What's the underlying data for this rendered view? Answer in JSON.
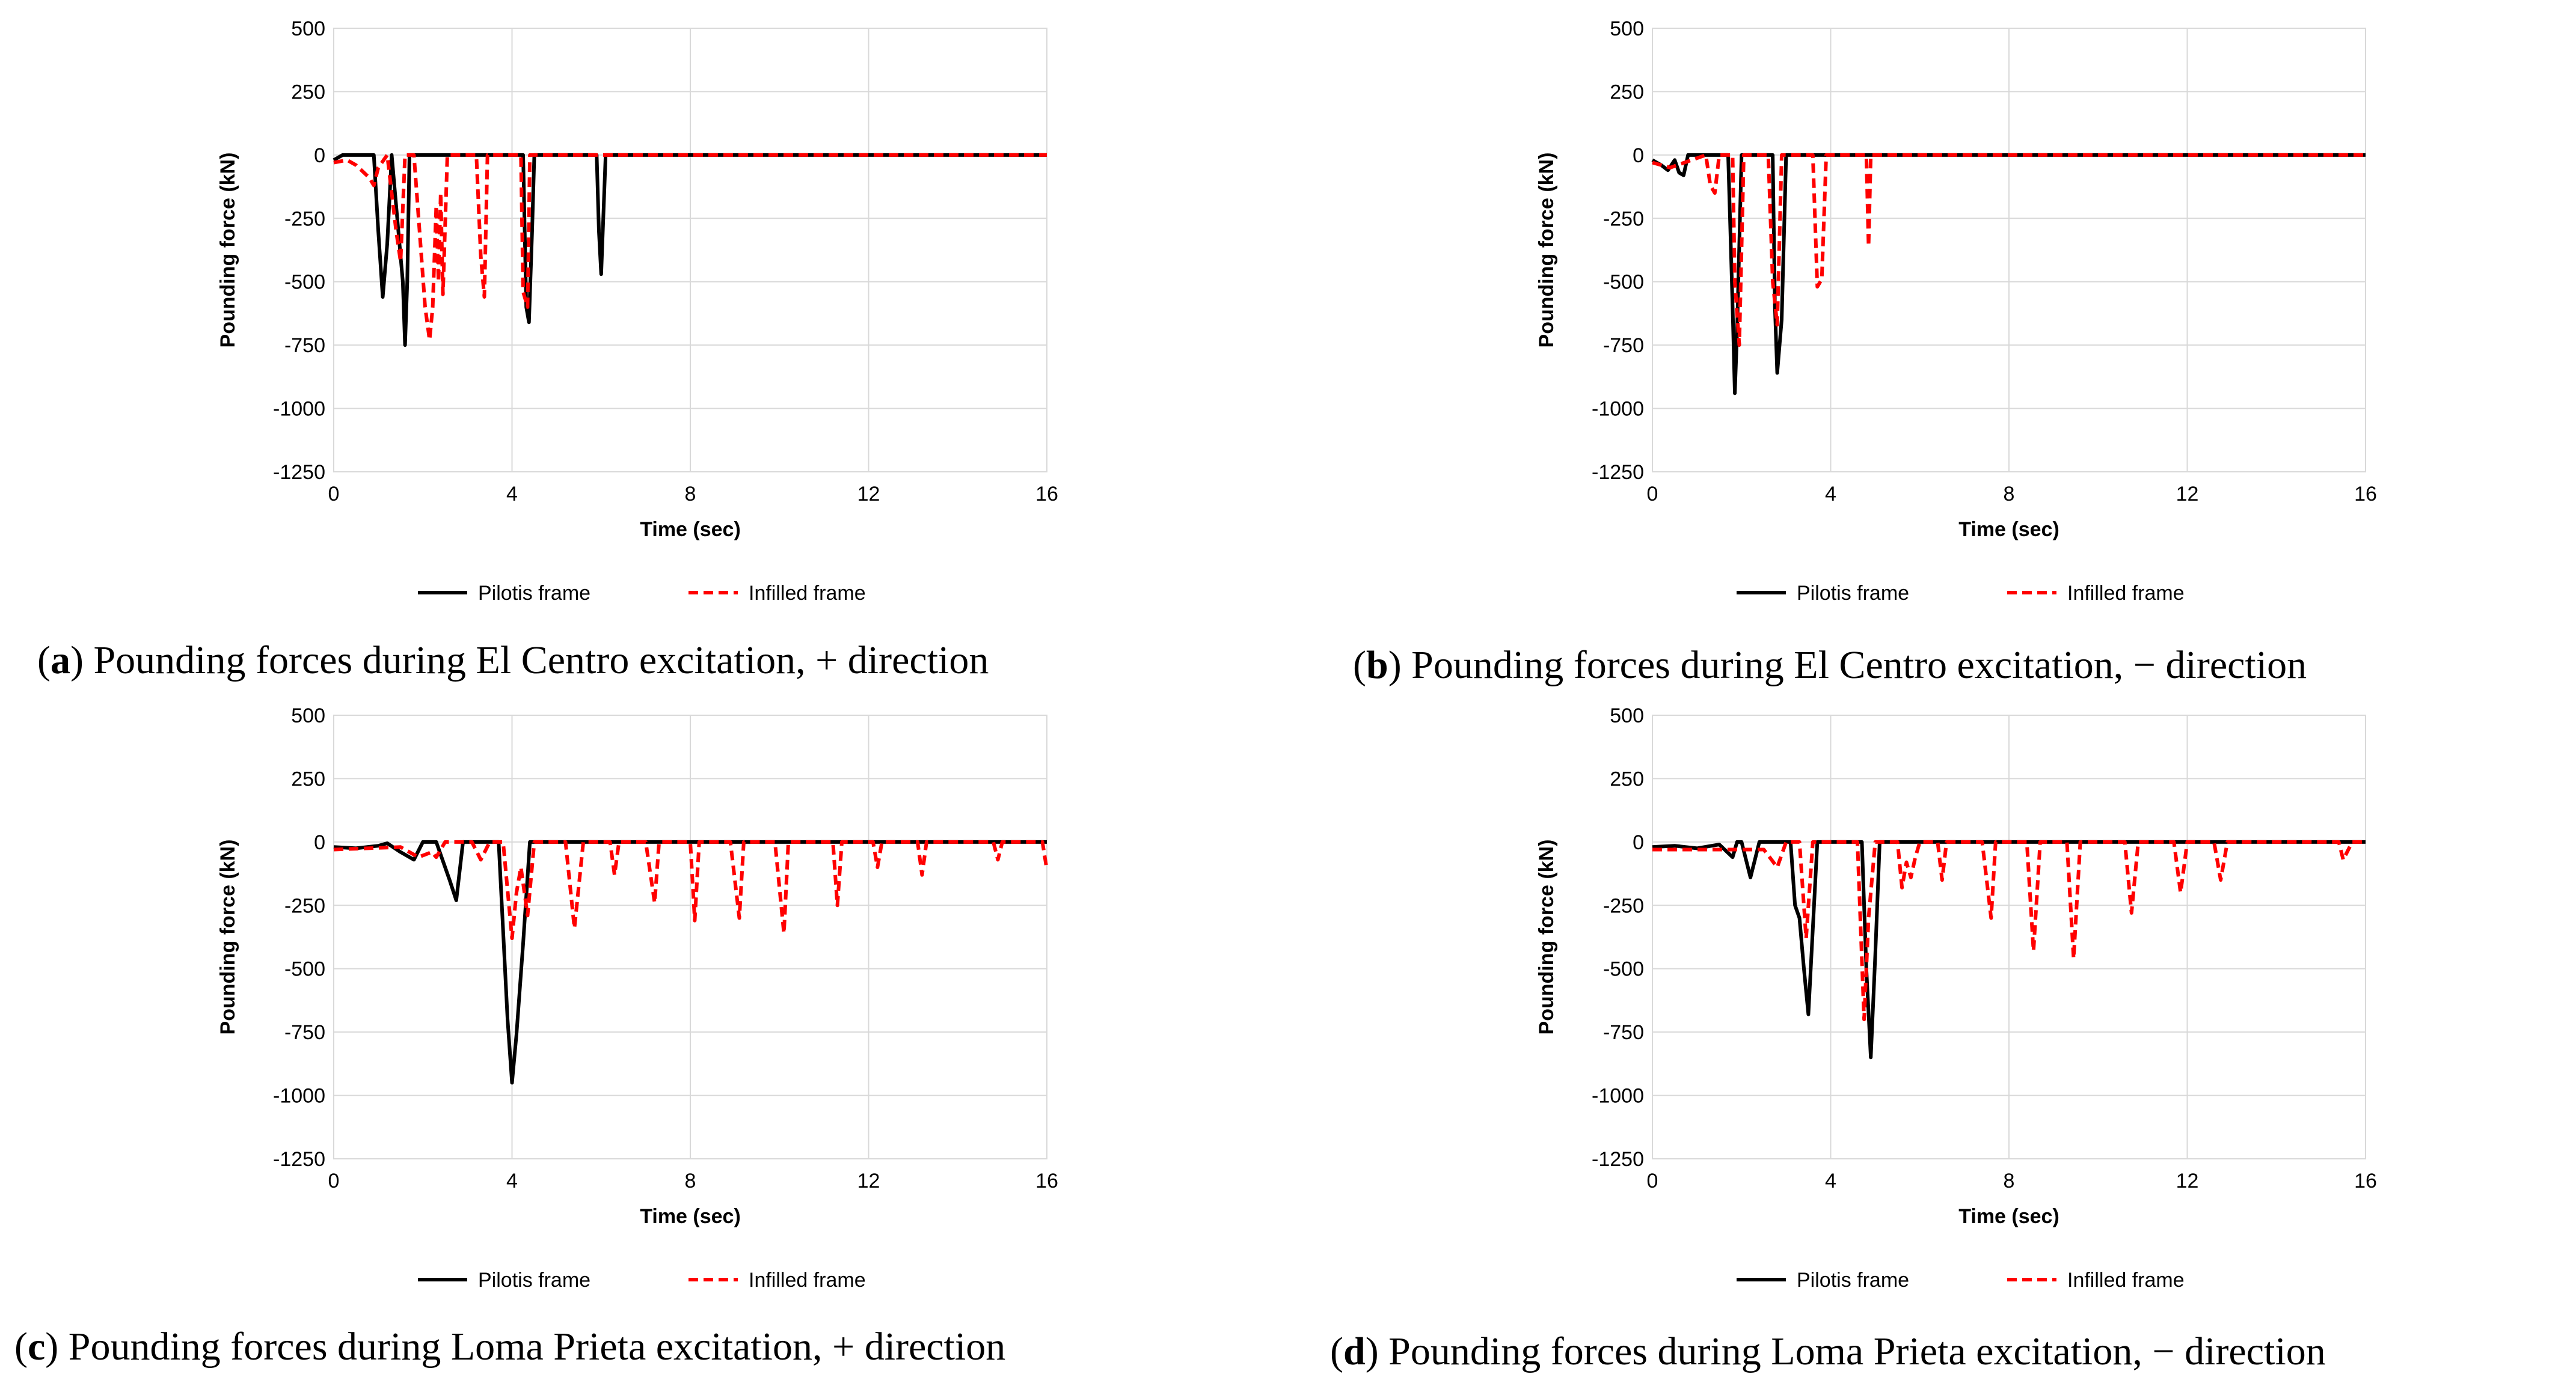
{
  "chart_data": [
    {
      "type": "line",
      "panel": "a",
      "caption_text": "Pounding forces during El Centro excitation, + direction",
      "xlabel": "Time (sec)",
      "ylabel": "Pounding force (kN)",
      "xlim": [
        0,
        16
      ],
      "ylim": [
        -1250,
        500
      ],
      "xticks": [
        "0",
        "4",
        "8",
        "12",
        "16"
      ],
      "yticks": [
        "500",
        "250",
        "0",
        "-250",
        "-500",
        "-750",
        "-1000",
        "-1250"
      ],
      "grid": "on",
      "legend": "bottom",
      "series": [
        {
          "name": "Pilotis frame",
          "color": "#000000",
          "dash": "solid",
          "x": [
            0,
            0.1,
            0.2,
            0.9,
            1.0,
            1.1,
            1.2,
            1.3,
            1.55,
            1.6,
            1.65,
            1.7,
            1.8,
            4.25,
            4.32,
            4.38,
            4.45,
            4.5,
            5.9,
            5.95,
            6.0,
            6.1,
            16
          ],
          "values": [
            -20,
            -10,
            0,
            0,
            -300,
            -560,
            -350,
            0,
            -500,
            -750,
            -500,
            0,
            0,
            0,
            -600,
            -660,
            -300,
            0,
            0,
            -300,
            -470,
            0,
            0
          ]
        },
        {
          "name": "Infilled frame",
          "color": "#ff0000",
          "dash": "dashed",
          "x": [
            0,
            0.3,
            0.5,
            0.8,
            0.9,
            1.0,
            1.2,
            1.4,
            1.5,
            1.6,
            1.8,
            2.05,
            2.15,
            2.22,
            2.3,
            2.35,
            2.4,
            2.45,
            2.55,
            3.2,
            3.3,
            3.38,
            3.45,
            4.2,
            4.25,
            4.35,
            4.4,
            16
          ],
          "values": [
            -30,
            -20,
            -40,
            -90,
            -120,
            -50,
            0,
            -300,
            -420,
            0,
            0,
            -600,
            -730,
            -600,
            -200,
            -500,
            -150,
            -550,
            0,
            0,
            -400,
            -560,
            0,
            0,
            -540,
            -600,
            0,
            0
          ]
        }
      ]
    },
    {
      "type": "line",
      "panel": "b",
      "caption_text": "Pounding forces during El Centro excitation, − direction",
      "xlabel": "Time (sec)",
      "ylabel": "Pounding force (kN)",
      "xlim": [
        0,
        16
      ],
      "ylim": [
        -1250,
        500
      ],
      "xticks": [
        "0",
        "4",
        "8",
        "12",
        "16"
      ],
      "yticks": [
        "500",
        "250",
        "0",
        "-250",
        "-500",
        "-750",
        "-1000",
        "-1250"
      ],
      "grid": "on",
      "legend": "bottom",
      "series": [
        {
          "name": "Pilotis frame",
          "color": "#000000",
          "dash": "solid",
          "x": [
            0,
            0.2,
            0.35,
            0.5,
            0.6,
            0.7,
            0.8,
            1.7,
            1.8,
            1.85,
            1.9,
            2.0,
            2.7,
            2.75,
            2.8,
            2.9,
            3.0,
            16
          ],
          "values": [
            -20,
            -40,
            -60,
            -20,
            -70,
            -80,
            0,
            0,
            -600,
            -940,
            -700,
            0,
            0,
            -600,
            -860,
            -650,
            0,
            0
          ]
        },
        {
          "name": "Infilled frame",
          "color": "#ff0000",
          "dash": "dashed",
          "x": [
            0,
            0.4,
            1.2,
            1.3,
            1.4,
            1.5,
            1.8,
            1.85,
            1.95,
            2.05,
            2.6,
            2.7,
            2.8,
            2.9,
            3.6,
            3.7,
            3.8,
            3.9,
            4.8,
            4.85,
            4.9,
            16
          ],
          "values": [
            -30,
            -50,
            0,
            -120,
            -150,
            0,
            0,
            -500,
            -750,
            0,
            0,
            -500,
            -670,
            0,
            0,
            -520,
            -490,
            0,
            0,
            -360,
            0,
            0
          ]
        }
      ]
    },
    {
      "type": "line",
      "panel": "c",
      "caption_text": "Pounding forces during Loma Prieta excitation, + direction",
      "xlabel": "Time (sec)",
      "ylabel": "Pounding force (kN)",
      "xlim": [
        0,
        16
      ],
      "ylim": [
        -1250,
        500
      ],
      "xticks": [
        "0",
        "4",
        "8",
        "12",
        "16"
      ],
      "yticks": [
        "500",
        "250",
        "0",
        "-250",
        "-500",
        "-750",
        "-1000",
        "-1250"
      ],
      "grid": "on",
      "legend": "bottom",
      "series": [
        {
          "name": "Pilotis frame",
          "color": "#000000",
          "dash": "solid",
          "x": [
            0,
            0.5,
            1.0,
            1.2,
            1.5,
            1.8,
            2.0,
            2.3,
            2.6,
            2.75,
            2.9,
            3.7,
            3.9,
            4.0,
            4.1,
            4.25,
            4.4,
            16
          ],
          "values": [
            -20,
            -25,
            -15,
            -5,
            -40,
            -70,
            0,
            0,
            -150,
            -230,
            0,
            0,
            -700,
            -950,
            -760,
            -400,
            0,
            0
          ]
        },
        {
          "name": "Infilled frame",
          "color": "#ff0000",
          "dash": "dashed",
          "x": [
            0,
            1.5,
            1.9,
            2.2,
            2.3,
            2.5,
            3.1,
            3.3,
            3.5,
            3.8,
            4.0,
            4.1,
            4.2,
            4.35,
            4.5,
            5.2,
            5.4,
            5.6,
            6.2,
            6.3,
            6.4,
            7.0,
            7.2,
            7.3,
            8.0,
            8.1,
            8.2,
            8.9,
            9.1,
            9.2,
            9.9,
            10.1,
            10.2,
            11.2,
            11.3,
            11.4,
            12.1,
            12.2,
            12.3,
            13.1,
            13.2,
            13.3,
            14.8,
            14.9,
            15.0,
            15.9,
            16
          ],
          "values": [
            -30,
            -20,
            -60,
            -40,
            -60,
            0,
            0,
            -70,
            0,
            0,
            -380,
            -200,
            -100,
            -290,
            0,
            0,
            -340,
            0,
            0,
            -130,
            0,
            0,
            -240,
            0,
            0,
            -310,
            0,
            0,
            -300,
            0,
            0,
            -360,
            0,
            0,
            -250,
            0,
            0,
            -100,
            0,
            0,
            -130,
            0,
            0,
            -70,
            0,
            0,
            -110
          ]
        }
      ]
    },
    {
      "type": "line",
      "panel": "d",
      "caption_text": "Pounding forces during Loma Prieta excitation, − direction",
      "xlabel": "Time (sec)",
      "ylabel": "Pounding force (kN)",
      "xlim": [
        0,
        16
      ],
      "ylim": [
        -1250,
        500
      ],
      "xticks": [
        "0",
        "4",
        "8",
        "12",
        "16"
      ],
      "yticks": [
        "500",
        "250",
        "0",
        "-250",
        "-500",
        "-750",
        "-1000",
        "-1250"
      ],
      "grid": "on",
      "legend": "bottom",
      "series": [
        {
          "name": "Pilotis frame",
          "color": "#000000",
          "dash": "solid",
          "x": [
            0,
            0.5,
            1.0,
            1.5,
            1.8,
            1.9,
            2.0,
            2.2,
            2.4,
            3.1,
            3.2,
            3.3,
            3.4,
            3.5,
            3.7,
            4.7,
            4.8,
            4.9,
            5.0,
            5.1,
            16
          ],
          "values": [
            -20,
            -15,
            -25,
            -10,
            -60,
            0,
            0,
            -140,
            0,
            0,
            -250,
            -300,
            -500,
            -680,
            0,
            0,
            -500,
            -850,
            -450,
            0,
            0
          ]
        },
        {
          "name": "Infilled frame",
          "color": "#ff0000",
          "dash": "dashed",
          "x": [
            0,
            1.5,
            2.5,
            2.8,
            3.0,
            3.3,
            3.45,
            3.6,
            4.6,
            4.75,
            4.85,
            5.0,
            5.5,
            5.6,
            5.7,
            5.8,
            5.9,
            6.0,
            6.4,
            6.5,
            6.6,
            7.4,
            7.6,
            7.7,
            8.4,
            8.55,
            8.7,
            9.3,
            9.45,
            9.6,
            10.6,
            10.75,
            10.9,
            11.7,
            11.85,
            12.0,
            12.6,
            12.75,
            12.9,
            15.4,
            15.5,
            15.7,
            16
          ],
          "values": [
            -30,
            -30,
            -30,
            -100,
            0,
            0,
            -380,
            0,
            0,
            -700,
            -300,
            0,
            0,
            -180,
            -80,
            -140,
            -60,
            0,
            0,
            -150,
            0,
            0,
            -300,
            0,
            0,
            -430,
            0,
            0,
            -460,
            0,
            0,
            -280,
            0,
            0,
            -200,
            0,
            0,
            -150,
            0,
            0,
            -70,
            0,
            0
          ]
        }
      ]
    }
  ]
}
